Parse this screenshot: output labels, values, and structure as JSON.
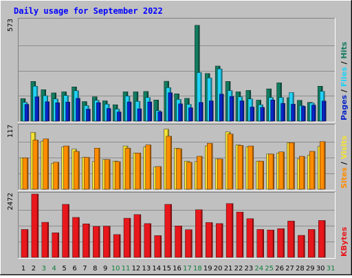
{
  "chart_data": {
    "type": "bar",
    "title": "Daily usage for September 2022",
    "days": [
      "1",
      "2",
      "3",
      "4",
      "5",
      "6",
      "7",
      "8",
      "9",
      "10",
      "11",
      "12",
      "13",
      "14",
      "15",
      "16",
      "17",
      "18",
      "19",
      "20",
      "21",
      "22",
      "23",
      "24",
      "25",
      "26",
      "27",
      "28",
      "29",
      "30",
      "31"
    ],
    "weekend_days": [
      "3",
      "4",
      "10",
      "11",
      "17",
      "18",
      "24",
      "25",
      "31"
    ],
    "panels": [
      {
        "id": "pages_files_hits",
        "max_label": "573",
        "ylim": [
          0,
          573
        ],
        "legend": [
          {
            "name": "Pages",
            "color": "#0a25c8"
          },
          {
            "name": "Files",
            "color": "#21d2f6"
          },
          {
            "name": "Hits",
            "color": "#127c60"
          }
        ],
        "separator": "/",
        "series": [
          {
            "name": "Hits",
            "color": "#127c60",
            "values": [
              128,
              225,
              178,
              160,
              166,
              194,
              111,
              138,
              115,
              93,
              166,
              166,
              168,
              120,
              226,
              155,
              129,
              543,
              270,
              312,
              225,
              166,
              174,
              119,
              183,
              217,
              133,
              118,
              106,
              198,
              null
            ]
          },
          {
            "name": "Files",
            "color": "#21d2f6",
            "values": [
              106,
              198,
              144,
              126,
              145,
              172,
              88,
              118,
              96,
              68,
              142,
              112,
              134,
              60,
              190,
              123,
              95,
              275,
              245,
              296,
              173,
              138,
              126,
              93,
              134,
              134,
              162,
              88,
              103,
              169,
              null
            ]
          },
          {
            "name": "Pages",
            "color": "#0a25c8",
            "values": [
              95,
              138,
              110,
              104,
              108,
              129,
              68,
              105,
              72,
              52,
              109,
              70,
              109,
              53,
              161,
              98,
              76,
              106,
              115,
              153,
              140,
              115,
              80,
              78,
              120,
              101,
              96,
              84,
              91,
              114,
              null
            ]
          }
        ]
      },
      {
        "id": "sites_visits",
        "max_label": "117",
        "ylim": [
          0,
          117
        ],
        "legend": [
          {
            "name": "Sites",
            "color": "#ff8c00"
          },
          {
            "name": "Visits",
            "color": "#f4e236"
          }
        ],
        "separator": "/",
        "series": [
          {
            "name": "Visits",
            "color": "#f4e236",
            "values": [
              58,
              105,
              89,
              48,
              78,
              74,
              59,
              51,
              55,
              52,
              80,
              67,
              78,
              41,
              111,
              76,
              52,
              51,
              80,
              56,
              106,
              82,
              78,
              52,
              65,
              67,
              86,
              56,
              63,
              79,
              null
            ]
          },
          {
            "name": "Sites",
            "color": "#ff8c00",
            "values": [
              58,
              91,
              93,
              50,
              80,
              70,
              59,
              76,
              55,
              51,
              76,
              67,
              82,
              42,
              98,
              75,
              50,
              61,
              85,
              56,
              102,
              81,
              80,
              52,
              65,
              69,
              86,
              61,
              70,
              88,
              null
            ]
          }
        ]
      },
      {
        "id": "kbytes",
        "max_label": "2472",
        "ylim": [
          0,
          2472
        ],
        "legend": [
          {
            "name": "KBytes",
            "color": "#e8171c"
          }
        ],
        "separator": "",
        "series": [
          {
            "name": "KBytes",
            "color": "#e8171c",
            "values": [
              1090,
              2472,
              1370,
              960,
              2070,
              1560,
              1310,
              1210,
              1220,
              890,
              1530,
              1670,
              1320,
              850,
              2070,
              1230,
              1080,
              1860,
              1360,
              1320,
              2100,
              1770,
              1510,
              1090,
              1070,
              1120,
              1420,
              860,
              1090,
              1440,
              null
            ]
          }
        ]
      }
    ]
  }
}
